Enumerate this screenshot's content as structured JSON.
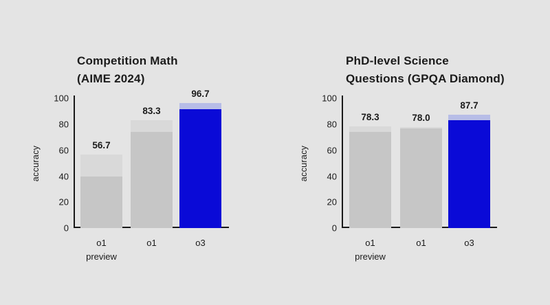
{
  "page": {
    "background_color": "#e4e4e4"
  },
  "colors": {
    "background": "#e4e4e4",
    "text": "#1b1b1b",
    "axis": "#191919",
    "bar_gray": "#c6c6c6",
    "bar_gray_cap": "#d9d9d9",
    "bar_blue": "#0a0ad7",
    "bar_blue_cap": "#b7bde7"
  },
  "chart_data": [
    {
      "type": "bar",
      "title": "Competition Math (AIME 2024)",
      "title_lines": [
        "Competition Math",
        "(AIME 2024)"
      ],
      "xlabel": "",
      "ylabel": "accuracy",
      "ylim": [
        0,
        100
      ],
      "yticks": [
        0,
        20,
        40,
        60,
        80,
        100
      ],
      "grid": "off",
      "legend": "none",
      "categories": [
        "o1 preview",
        "o1",
        "o3"
      ],
      "category_lines": [
        [
          "o1",
          "preview"
        ],
        [
          "o1"
        ],
        [
          "o3"
        ]
      ],
      "values": [
        56.7,
        83.3,
        96.7
      ],
      "value_labels": [
        "56.7",
        "83.3",
        "96.7"
      ],
      "inner_values": [
        40.0,
        74.4,
        91.6
      ],
      "highlight_index": 2
    },
    {
      "type": "bar",
      "title": "PhD-level Science Questions (GPQA Diamond)",
      "title_lines": [
        "PhD-level Science",
        "Questions (GPQA Diamond)"
      ],
      "xlabel": "",
      "ylabel": "accuracy",
      "ylim": [
        0,
        100
      ],
      "yticks": [
        0,
        20,
        40,
        60,
        80,
        100
      ],
      "grid": "off",
      "legend": "none",
      "categories": [
        "o1 preview",
        "o1",
        "o3"
      ],
      "category_lines": [
        [
          "o1",
          "preview"
        ],
        [
          "o1"
        ],
        [
          "o3"
        ]
      ],
      "values": [
        78.3,
        78.0,
        87.7
      ],
      "value_labels": [
        "78.3",
        "78.0",
        "87.7"
      ],
      "inner_values": [
        74.0,
        76.8,
        83.3
      ],
      "highlight_index": 2
    }
  ]
}
